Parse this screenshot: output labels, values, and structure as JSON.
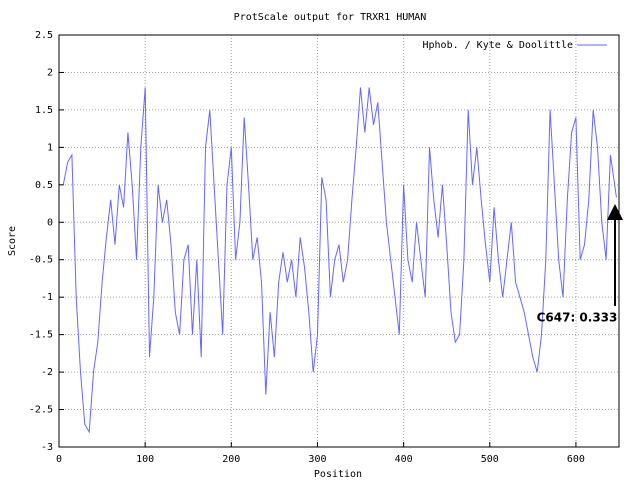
{
  "chart_data": {
    "type": "line",
    "title": "ProtScale output for TRXR1 HUMAN",
    "xlabel": "Position",
    "ylabel": "Score",
    "xlim": [
      0,
      650
    ],
    "ylim": [
      -3,
      2.5
    ],
    "xticks": [
      0,
      100,
      200,
      300,
      400,
      500,
      600
    ],
    "yticks": [
      -3,
      -2.5,
      -2,
      -1.5,
      -1,
      -0.5,
      0,
      0.5,
      1,
      1.5,
      2,
      2.5
    ],
    "grid": true,
    "legend": "upper right",
    "annotation": "C647: 0.333",
    "x": [
      5,
      10,
      15,
      20,
      25,
      30,
      35,
      40,
      45,
      50,
      55,
      60,
      65,
      70,
      75,
      80,
      85,
      90,
      95,
      100,
      105,
      110,
      115,
      120,
      125,
      130,
      135,
      140,
      145,
      150,
      155,
      160,
      165,
      170,
      175,
      180,
      185,
      190,
      195,
      200,
      205,
      210,
      215,
      220,
      225,
      230,
      235,
      240,
      245,
      250,
      255,
      260,
      265,
      270,
      275,
      280,
      285,
      290,
      295,
      300,
      305,
      310,
      315,
      320,
      325,
      330,
      335,
      340,
      345,
      350,
      355,
      360,
      365,
      370,
      375,
      380,
      385,
      390,
      395,
      400,
      405,
      410,
      415,
      420,
      425,
      430,
      435,
      440,
      445,
      450,
      455,
      460,
      465,
      470,
      475,
      480,
      485,
      490,
      495,
      500,
      505,
      510,
      515,
      520,
      525,
      530,
      535,
      540,
      545,
      550,
      555,
      560,
      565,
      570,
      575,
      580,
      585,
      590,
      595,
      600,
      605,
      610,
      615,
      620,
      625,
      630,
      635,
      640,
      645,
      647
    ],
    "series": [
      {
        "name": "Hphob. / Kyte & Doolittle",
        "color": "#6666ff",
        "values": [
          0.5,
          0.8,
          0.9,
          -1.0,
          -2.0,
          -2.7,
          -2.8,
          -2.0,
          -1.6,
          -0.8,
          -0.2,
          0.3,
          -0.3,
          0.5,
          0.2,
          1.2,
          0.5,
          -0.5,
          1.0,
          1.8,
          -1.8,
          -1.0,
          0.5,
          0.0,
          0.3,
          -0.3,
          -1.2,
          -1.5,
          -0.5,
          -0.3,
          -1.5,
          -0.5,
          -1.8,
          1.0,
          1.5,
          0.5,
          -0.5,
          -1.5,
          0.5,
          1.0,
          -0.5,
          0.0,
          1.4,
          0.5,
          -0.5,
          -0.2,
          -0.8,
          -2.3,
          -1.2,
          -1.8,
          -0.8,
          -0.4,
          -0.8,
          -0.5,
          -1.0,
          -0.2,
          -0.6,
          -1.2,
          -2.0,
          -1.5,
          0.6,
          0.3,
          -1.0,
          -0.5,
          -0.3,
          -0.8,
          -0.5,
          0.3,
          1.0,
          1.8,
          1.2,
          1.8,
          1.3,
          1.6,
          0.8,
          0.0,
          -0.5,
          -1.0,
          -1.5,
          0.5,
          -0.5,
          -0.8,
          0.0,
          -0.5,
          -1.0,
          1.0,
          0.3,
          -0.2,
          0.5,
          -0.3,
          -1.2,
          -1.6,
          -1.5,
          -0.5,
          1.5,
          0.5,
          1.0,
          0.3,
          -0.3,
          -0.8,
          0.2,
          -0.5,
          -1.0,
          -0.5,
          0.0,
          -0.8,
          -1.0,
          -1.2,
          -1.5,
          -1.8,
          -2.0,
          -1.5,
          -0.5,
          1.5,
          0.5,
          -0.5,
          -1.0,
          0.3,
          1.2,
          1.4,
          -0.5,
          -0.3,
          0.3,
          1.5,
          1.0,
          0.0,
          -0.5,
          0.9,
          0.5,
          0.333
        ]
      }
    ]
  }
}
